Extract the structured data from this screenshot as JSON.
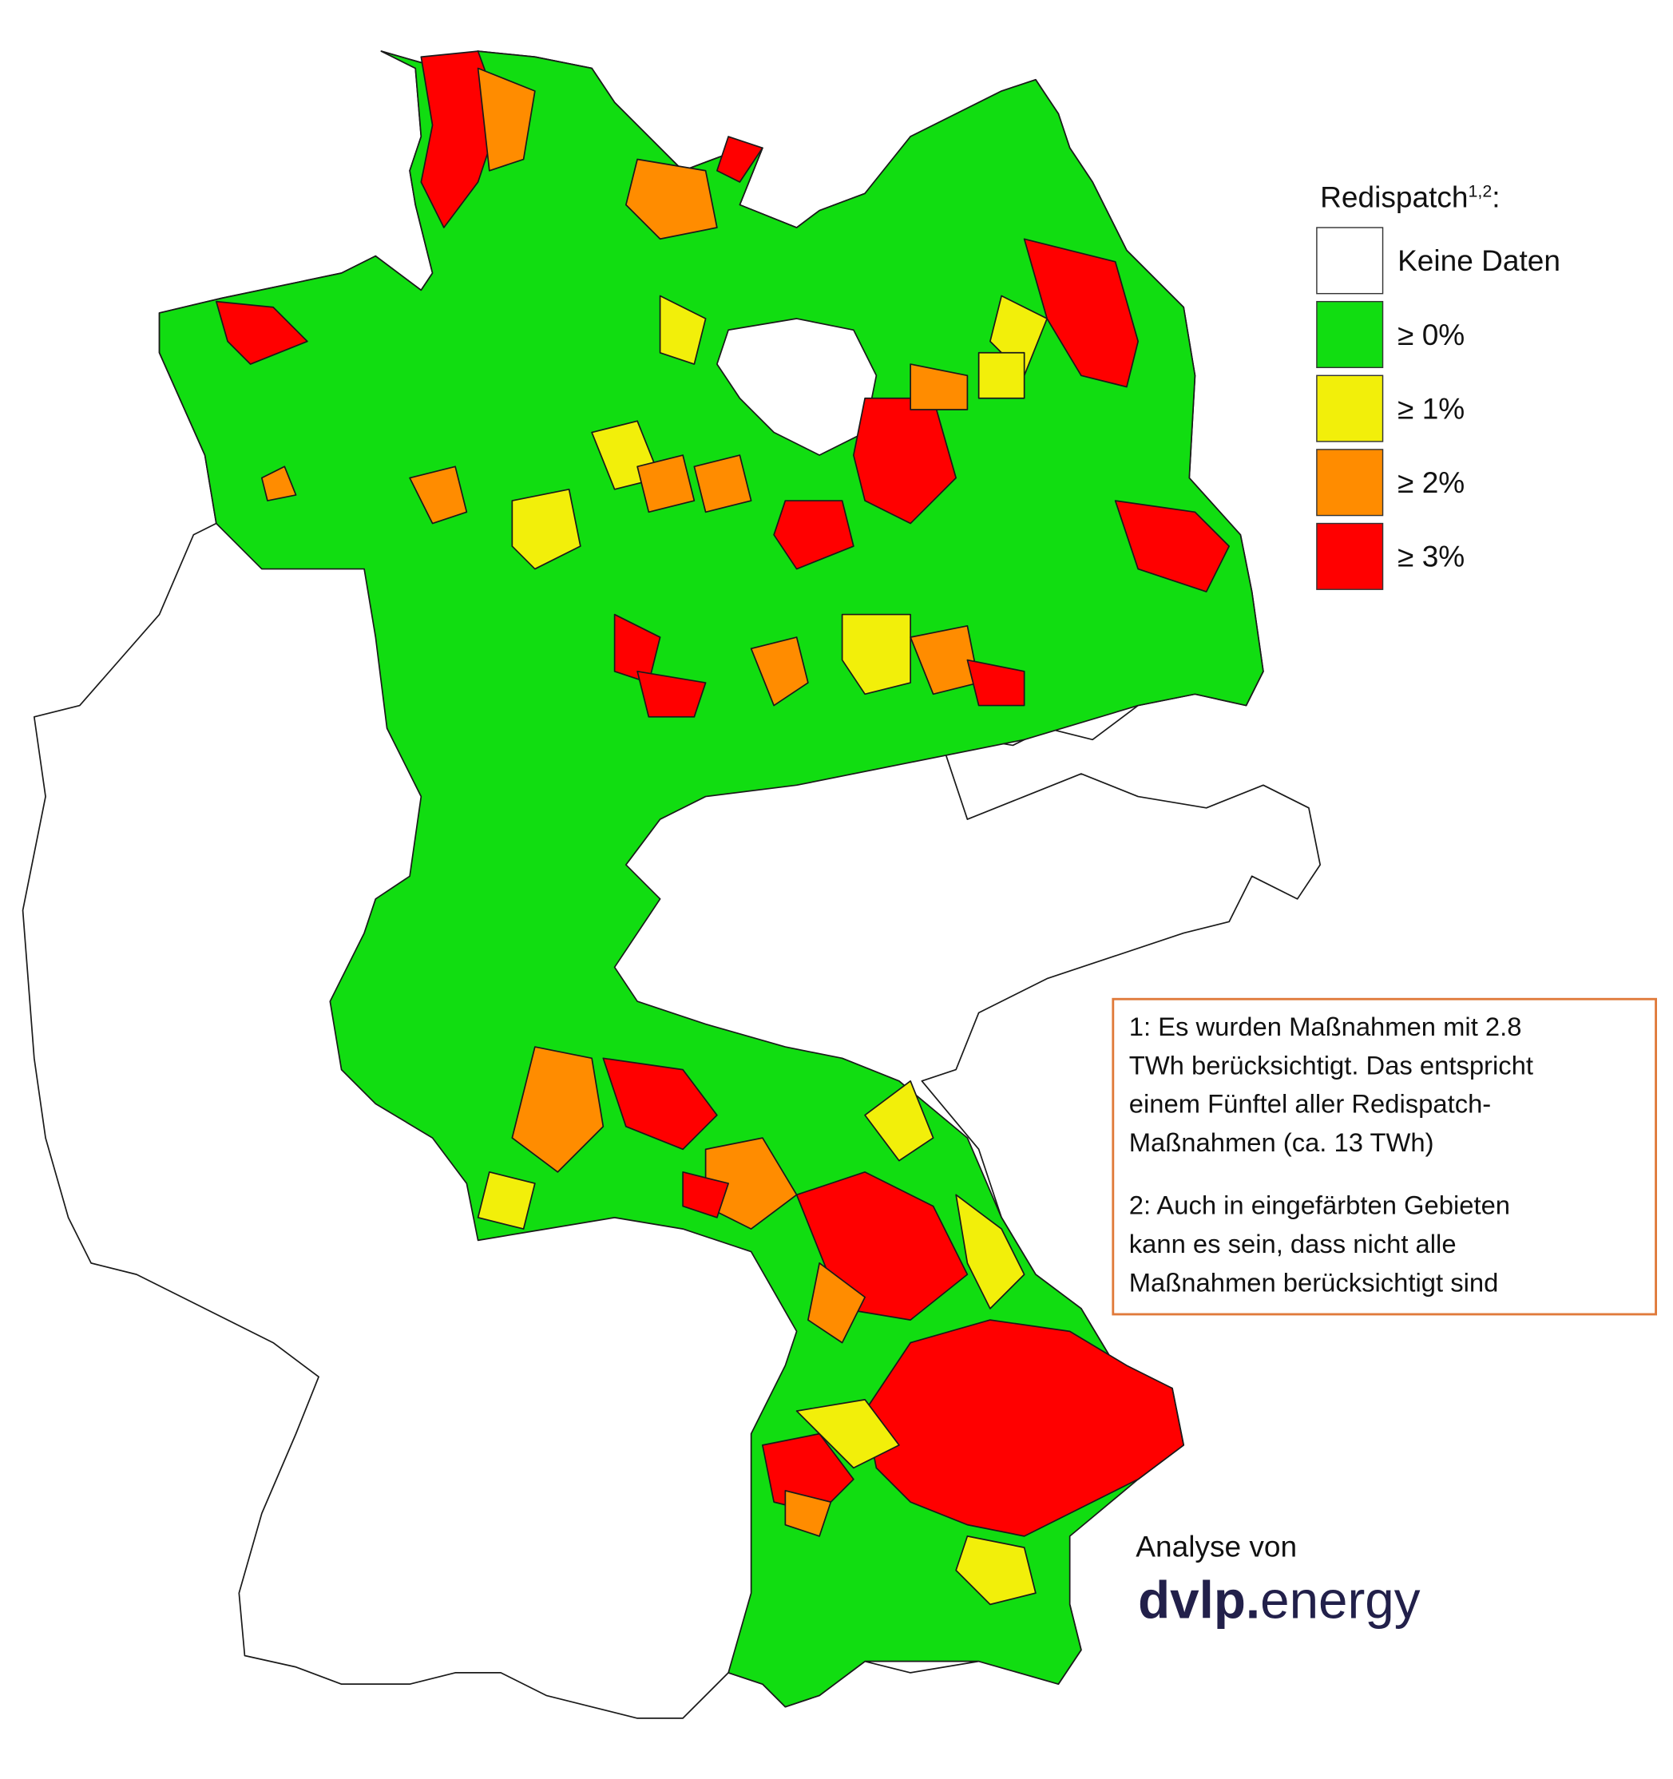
{
  "legend": {
    "title": "Redispatch",
    "superscript": "1,2",
    "colon": ":",
    "items": [
      {
        "label": "Keine Daten",
        "color": "#ffffff"
      },
      {
        "label": "≥ 0%",
        "color": "#11dd11"
      },
      {
        "label": "≥ 1%",
        "color": "#f2ef0a"
      },
      {
        "label": "≥ 2%",
        "color": "#ff8c00"
      },
      {
        "label": "≥ 3%",
        "color": "#ff0000"
      }
    ]
  },
  "notes": [
    [
      "1: Es wurden Maßnahmen mit 2.8",
      "TWh berücksichtigt. Das entspricht",
      "einem Fünftel aller Redispatch-",
      "Maßnahmen (ca. 13 TWh)"
    ],
    [
      "2: Auch in eingefärbten Gebieten",
      "kann es sein, dass nicht alle",
      "Maßnahmen berücksichtigt sind"
    ]
  ],
  "attribution": {
    "prefix": "Analyse von",
    "brand_bold": "dvlp.",
    "brand_light": "energy"
  }
}
